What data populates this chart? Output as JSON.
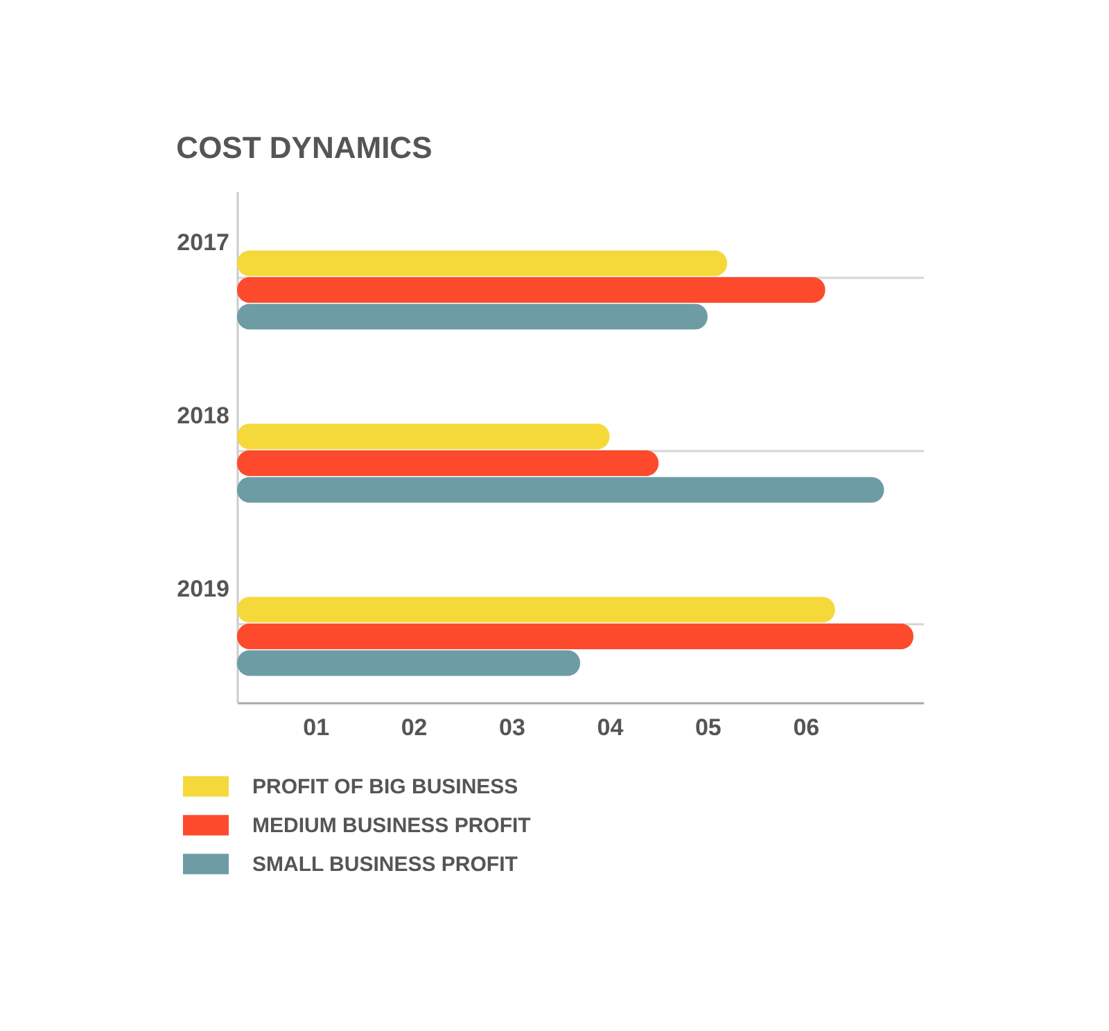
{
  "chart_data": {
    "type": "bar",
    "orientation": "horizontal",
    "title": "COST DYNAMICS",
    "categories": [
      "2017",
      "2018",
      "2019"
    ],
    "series": [
      {
        "name": "PROFIT OF BIG BUSINESS",
        "color": "#f5d93a",
        "values": [
          5.2,
          4.0,
          6.3
        ]
      },
      {
        "name": "MEDIUM BUSINESS PROFIT",
        "color": "#fd4a2c",
        "values": [
          6.2,
          4.5,
          7.1
        ]
      },
      {
        "name": "SMALL BUSINESS PROFIT",
        "color": "#6e9ca5",
        "values": [
          5.0,
          6.8,
          3.7
        ]
      }
    ],
    "xlim": [
      0.2,
      7.2
    ],
    "xticks": [
      {
        "value": 1,
        "label": "01"
      },
      {
        "value": 2,
        "label": "02"
      },
      {
        "value": 3,
        "label": "03"
      },
      {
        "value": 4,
        "label": "04"
      },
      {
        "value": 5,
        "label": "05"
      },
      {
        "value": 6,
        "label": "06"
      }
    ],
    "grid": "y",
    "legend": "bottom left"
  }
}
